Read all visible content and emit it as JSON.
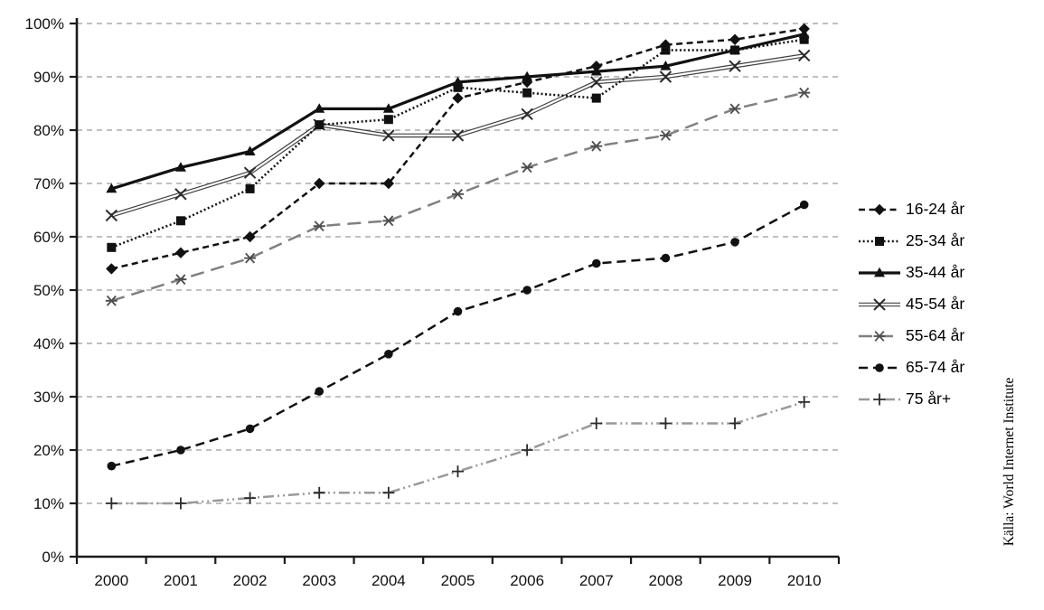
{
  "chart_data": {
    "type": "line",
    "title": "",
    "xlabel": "",
    "ylabel": "",
    "categories": [
      "2000",
      "2001",
      "2002",
      "2003",
      "2004",
      "2005",
      "2006",
      "2007",
      "2008",
      "2009",
      "2010"
    ],
    "series": [
      {
        "name": "16-24 år",
        "marker": "diamond",
        "line": "dashed",
        "color": "#111111",
        "values": [
          54,
          57,
          60,
          70,
          70,
          86,
          89,
          92,
          96,
          97,
          99
        ]
      },
      {
        "name": "25-34 år",
        "marker": "square",
        "line": "dotted",
        "color": "#111111",
        "values": [
          58,
          63,
          69,
          81,
          82,
          88,
          87,
          86,
          95,
          95,
          97
        ]
      },
      {
        "name": "35-44 år",
        "marker": "triangle",
        "line": "solid",
        "color": "#111111",
        "values": [
          69,
          73,
          76,
          84,
          84,
          89,
          90,
          91,
          92,
          95,
          98
        ]
      },
      {
        "name": "45-54 år",
        "marker": "x",
        "line": "double",
        "color": "#404040",
        "values": [
          64,
          68,
          72,
          81,
          79,
          79,
          83,
          89,
          90,
          92,
          94
        ]
      },
      {
        "name": "55-64 år",
        "marker": "asterisk",
        "line": "longdash",
        "color": "#808080",
        "values": [
          48,
          52,
          56,
          62,
          63,
          68,
          73,
          77,
          79,
          84,
          87
        ]
      },
      {
        "name": "65-74 år",
        "marker": "circle",
        "line": "dash",
        "color": "#111111",
        "values": [
          17,
          20,
          24,
          31,
          38,
          46,
          50,
          55,
          56,
          59,
          66
        ]
      },
      {
        "name": "75 år+",
        "marker": "plus",
        "line": "dashdotdot",
        "color": "#999999",
        "values": [
          10,
          10,
          11,
          12,
          12,
          16,
          20,
          25,
          25,
          25,
          29
        ]
      }
    ],
    "ylim": [
      0,
      100
    ],
    "ytick_step": 10,
    "y_tick_suffix": "%",
    "grid": "horizontal-dashed",
    "gridline_color": "#ababab",
    "axis_color": "#1a1a1a",
    "legend_position": "right",
    "source": "Källa: World Internet Institute"
  }
}
